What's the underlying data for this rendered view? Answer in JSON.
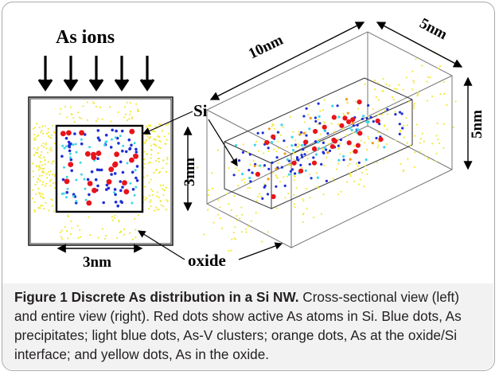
{
  "figure": {
    "labels": {
      "ions": "As ions",
      "si": "Si",
      "dim_3nm_vertical": "3nm",
      "dim_3nm_horizontal": "3nm",
      "dim_10nm": "10nm",
      "dim_5nm_top": "5nm",
      "dim_5nm_right": "5nm",
      "oxide": "oxide"
    },
    "colors": {
      "active_as_in_si": "#e8141b",
      "as_precipitates": "#1f2fd6",
      "as_v_clusters": "#3fd6e6",
      "as_at_interface": "#f39a1e",
      "as_in_oxide": "#f2ea3a"
    }
  },
  "caption": {
    "label": "Figure 1 Discrete As distribution in a Si NW.",
    "text": " Cross-sectional view (left) and entire view (right). Red dots show active As atoms in Si. Blue dots, As precipitates; light blue dots, As-V clusters; orange dots, As at the oxide/Si interface; and yellow dots, As in the oxide."
  }
}
